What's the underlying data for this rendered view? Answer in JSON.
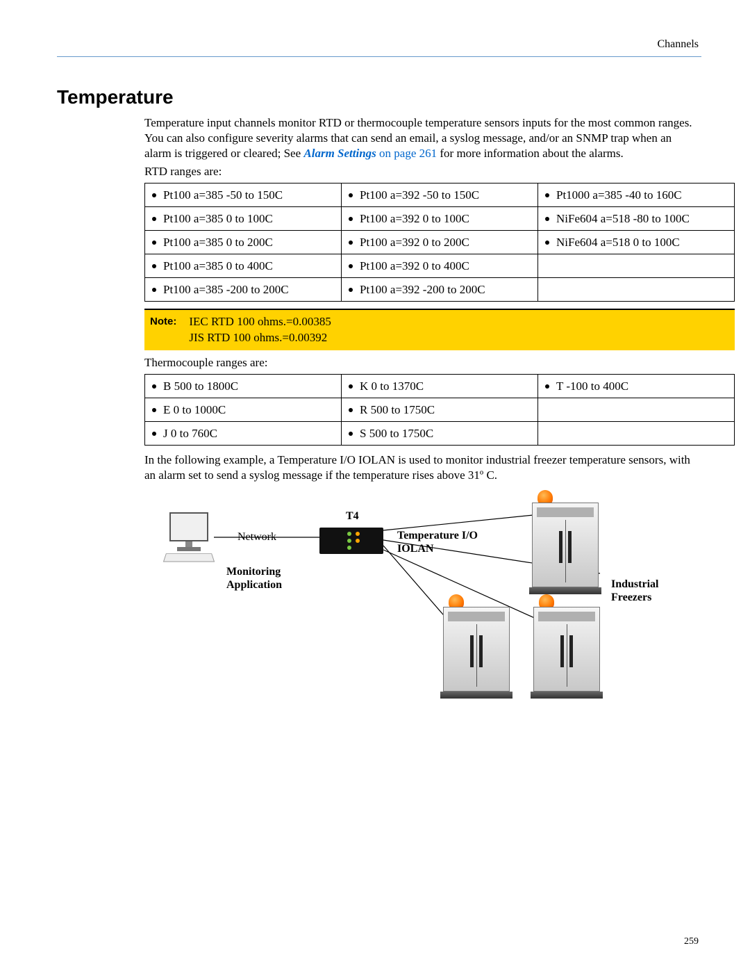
{
  "header": {
    "section": "Channels"
  },
  "title": "Temperature",
  "intro": {
    "text_before_link": "Temperature input channels monitor RTD or thermocouple temperature sensors inputs for the most common ranges. You can also configure severity alarms that can send an email, a syslog message, and/or an SNMP trap when an alarm is triggered or cleared; See ",
    "link_text": "Alarm Settings ",
    "link_suffix": "on page 261",
    "text_after_link": " for more information about the alarms."
  },
  "rtd": {
    "label": "RTD ranges are:",
    "rows": [
      [
        "Pt100 a=385 -50 to 150C",
        "Pt100 a=392 -50 to 150C",
        "Pt1000 a=385 -40 to 160C"
      ],
      [
        "Pt100 a=385 0 to 100C",
        "Pt100 a=392 0 to 100C",
        "NiFe604 a=518 -80 to 100C"
      ],
      [
        "Pt100 a=385 0 to 200C",
        "Pt100 a=392 0 to 200C",
        "NiFe604 a=518 0 to 100C"
      ],
      [
        "Pt100 a=385 0 to 400C",
        "Pt100 a=392 0 to 400C",
        ""
      ],
      [
        "Pt100 a=385 -200 to 200C",
        "Pt100 a=392 -200 to 200C",
        ""
      ]
    ]
  },
  "note": {
    "label": "Note:",
    "line1": "IEC RTD 100 ohms.=0.00385",
    "line2": "JIS RTD 100 ohms.=0.00392"
  },
  "thermo": {
    "label": "Thermocouple ranges are:",
    "rows": [
      [
        "B 500 to 1800C",
        "K 0 to 1370C",
        "T -100 to 400C"
      ],
      [
        "E 0 to 1000C",
        "R 500 to 1750C",
        ""
      ],
      [
        "J 0 to 760C",
        "S 500 to 1750C",
        ""
      ]
    ]
  },
  "example_text": "In the following example, a Temperature I/O IOLAN is used to monitor industrial freezer temperature sensors, with an alarm set to send a syslog message if the temperature rises above 31º C.",
  "diagram": {
    "monitoring_label": "Monitoring\nApplication",
    "network_label": "Network",
    "t4_label": "T4",
    "io_label": "Temperature I/O\nIOLAN",
    "freezer_label": "Industrial\nFreezers",
    "colors": {
      "line": "#000000",
      "device_body": "#111111",
      "beacon": "#ff7700"
    }
  },
  "page_number": "259"
}
